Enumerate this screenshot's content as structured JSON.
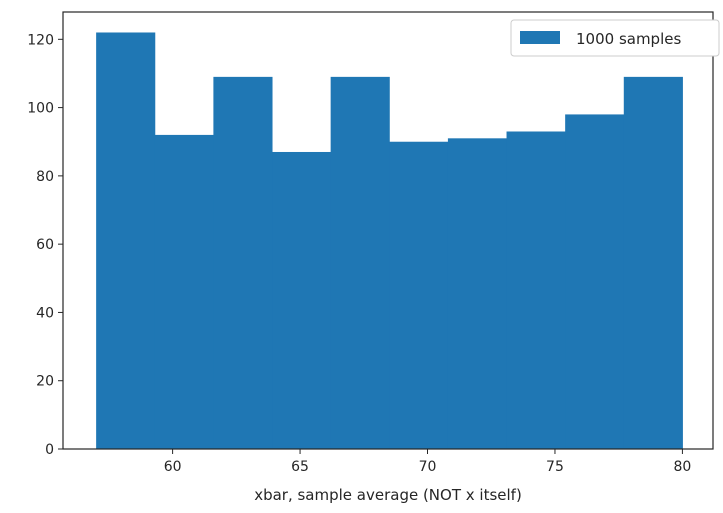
{
  "chart_data": {
    "type": "bar",
    "histogram": true,
    "title": "",
    "xlabel": "xbar, sample average (NOT x itself)",
    "ylabel": "",
    "bin_edges": [
      57.0,
      59.3,
      61.6,
      63.9,
      66.2,
      68.5,
      70.8,
      73.1,
      75.4,
      77.7,
      80.0
    ],
    "values": [
      122,
      92,
      109,
      87,
      109,
      90,
      91,
      93,
      98,
      109
    ],
    "xlim": [
      55.7,
      81.2
    ],
    "ylim": [
      0,
      128
    ],
    "xticks": [
      60,
      65,
      70,
      75,
      80
    ],
    "yticks": [
      0,
      20,
      40,
      60,
      80,
      100,
      120
    ],
    "legend": {
      "position": "top-right",
      "entries": [
        "1000 samples"
      ]
    },
    "grid": false,
    "colors": {
      "bar": "#1f77b4",
      "axis": "#262626"
    }
  }
}
